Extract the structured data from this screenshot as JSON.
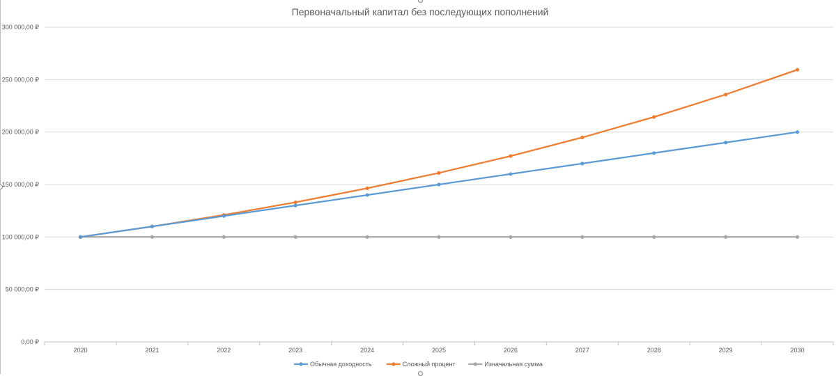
{
  "chart_data": {
    "type": "line",
    "title": "Первоначальный капитал без последующих пополнений",
    "xlabel": "",
    "ylabel": "",
    "categories": [
      "2020",
      "2021",
      "2022",
      "2023",
      "2024",
      "2025",
      "2026",
      "2027",
      "2028",
      "2029",
      "2030"
    ],
    "ylim": [
      0,
      300000
    ],
    "yticks": [
      0,
      50000,
      100000,
      150000,
      200000,
      250000,
      300000
    ],
    "ytick_labels": [
      "0,00 ₽",
      "50 000,00 ₽",
      "100 000,00 ₽",
      "150 000,00 ₽",
      "200 000,00 ₽",
      "250 000,00 ₽",
      "300 000,00 ₽"
    ],
    "grid": true,
    "legend_position": "bottom",
    "series": [
      {
        "name": "Обычная доходность",
        "color": "#5b9bd5",
        "values": [
          100000,
          110000,
          120000,
          130000,
          140000,
          150000,
          160000,
          170000,
          180000,
          190000,
          200000
        ]
      },
      {
        "name": "Сложный процент",
        "color": "#ed7d31",
        "values": [
          100000,
          110000,
          121000,
          133100,
          146410,
          161051,
          177156,
          194872,
          214359,
          235795,
          259374
        ]
      },
      {
        "name": "Изначальная сумма",
        "color": "#a5a5a5",
        "values": [
          100000,
          100000,
          100000,
          100000,
          100000,
          100000,
          100000,
          100000,
          100000,
          100000,
          100000
        ]
      }
    ]
  }
}
